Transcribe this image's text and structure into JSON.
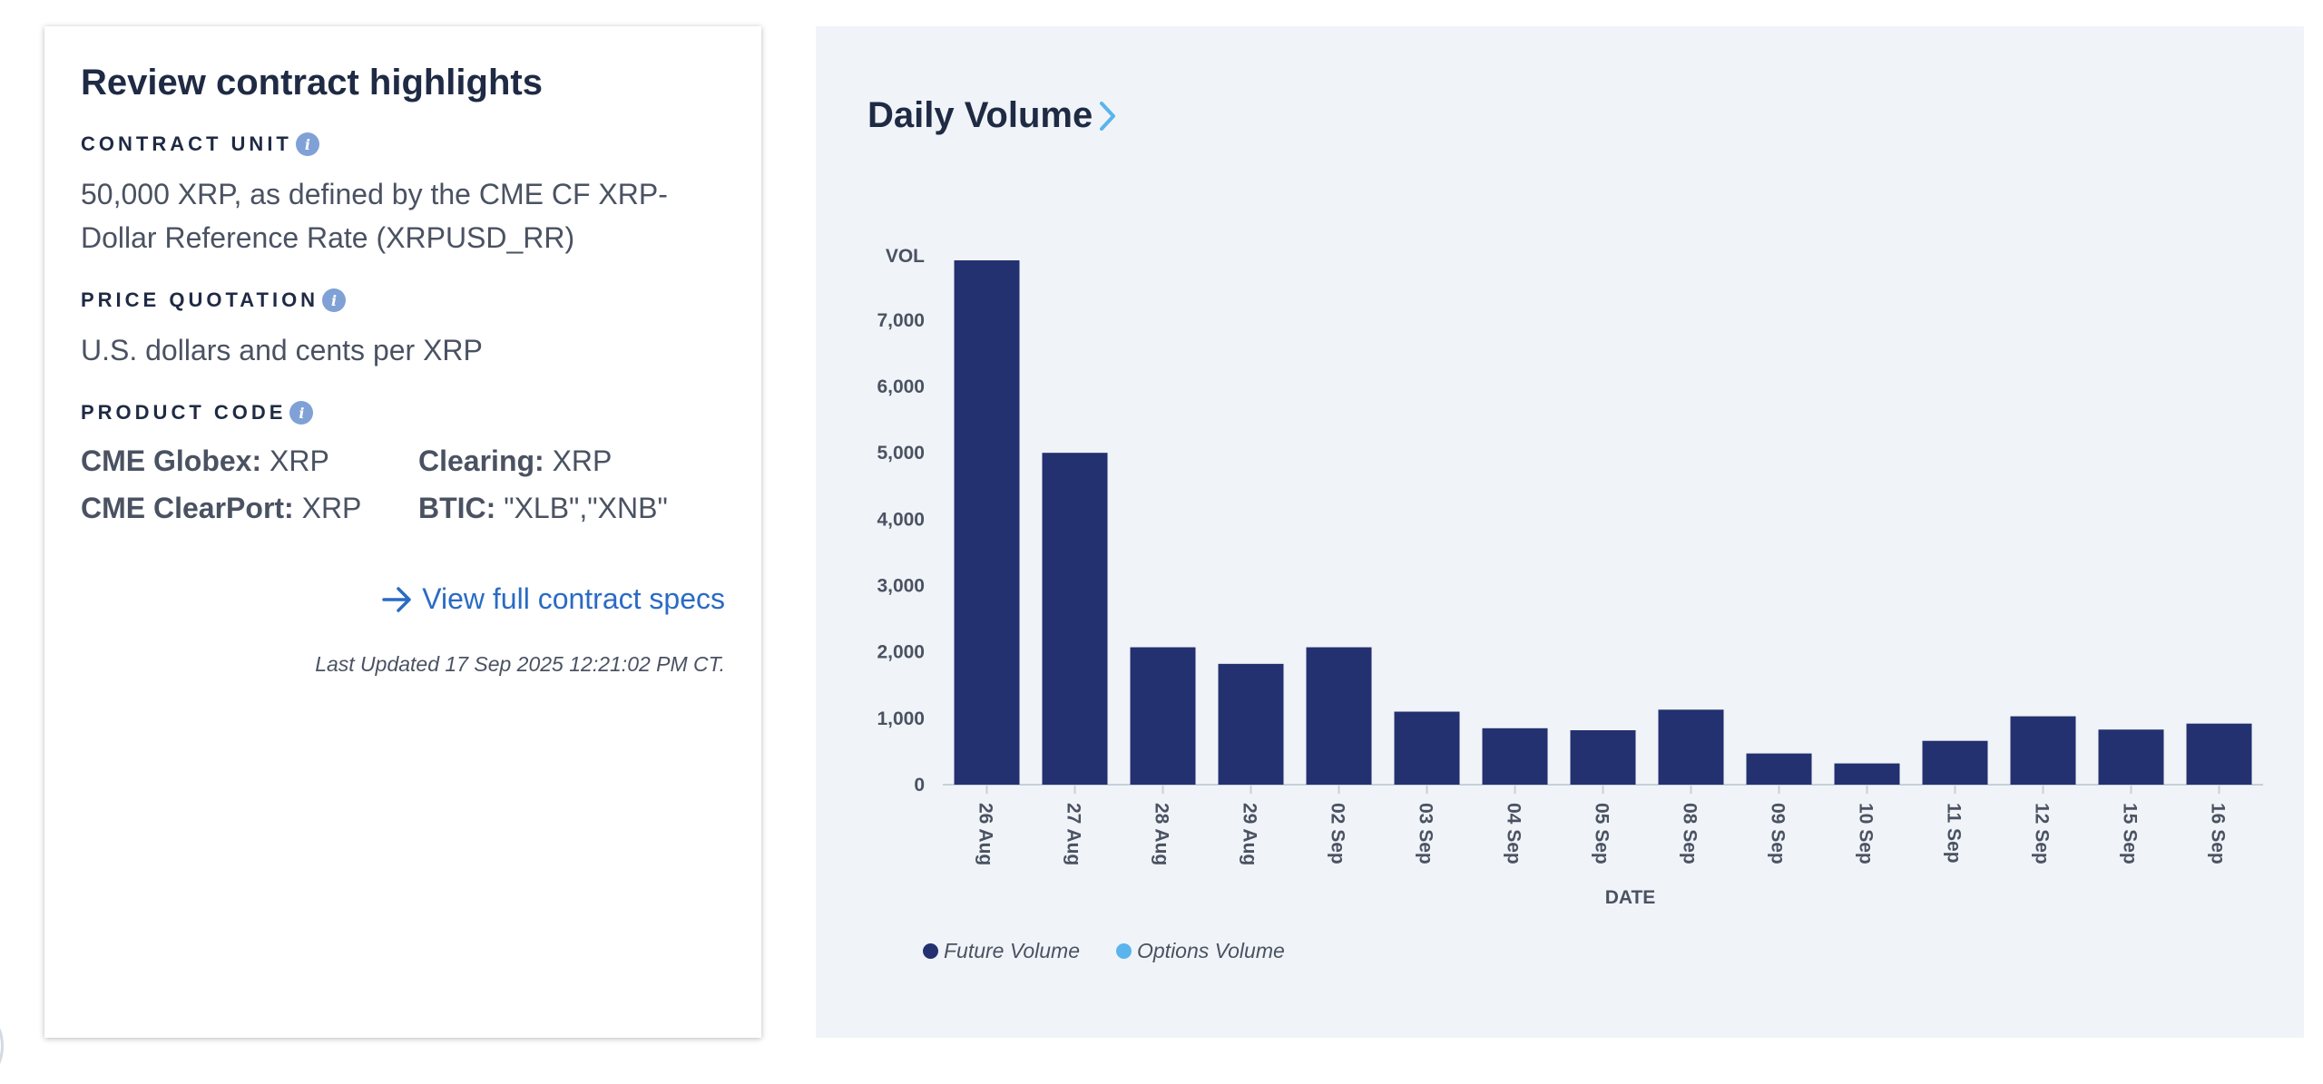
{
  "highlights": {
    "title": "Review contract highlights",
    "contract_unit_label": "CONTRACT UNIT",
    "contract_unit_text": "50,000 XRP, as defined by the CME CF XRP-Dollar Reference Rate (XRPUSD_RR)",
    "price_quotation_label": "PRICE QUOTATION",
    "price_quotation_text": "U.S. dollars and cents per XRP",
    "product_code_label": "PRODUCT CODE",
    "codes": [
      {
        "label": "CME Globex:",
        "value": " XRP"
      },
      {
        "label": "Clearing:",
        "value": " XRP"
      },
      {
        "label": "CME ClearPort:",
        "value": " XRP"
      },
      {
        "label": "BTIC:",
        "value": " \"XLB\",\"XNB\""
      }
    ],
    "specs_link": "View full contract specs",
    "last_updated": "Last Updated 17 Sep 2025 12:21:02 PM CT."
  },
  "chart_panel": {
    "title": "Daily Volume"
  },
  "chart_data": {
    "type": "bar",
    "title": "Daily Volume",
    "xlabel": "DATE",
    "ylabel": "VOL",
    "categories": [
      "26 Aug",
      "27 Aug",
      "28 Aug",
      "29 Aug",
      "02 Sep",
      "03 Sep",
      "04 Sep",
      "05 Sep",
      "08 Sep",
      "09 Sep",
      "10 Sep",
      "11 Sep",
      "12 Sep",
      "15 Sep",
      "16 Sep"
    ],
    "series": [
      {
        "name": "Future Volume",
        "color": "#233170",
        "values": [
          7900,
          5000,
          2070,
          1820,
          2070,
          1100,
          850,
          820,
          1130,
          470,
          320,
          660,
          1030,
          830,
          920
        ]
      },
      {
        "name": "Options Volume",
        "color": "#5bb4ec",
        "values": [
          0,
          0,
          0,
          0,
          0,
          0,
          0,
          0,
          0,
          0,
          0,
          0,
          0,
          0,
          0
        ]
      }
    ],
    "yticks": [
      "0",
      "1,000",
      "2,000",
      "3,000",
      "4,000",
      "5,000",
      "6,000",
      "7,000"
    ],
    "ylim": [
      0,
      7900
    ],
    "grid": false,
    "legend": "bottom-left"
  }
}
